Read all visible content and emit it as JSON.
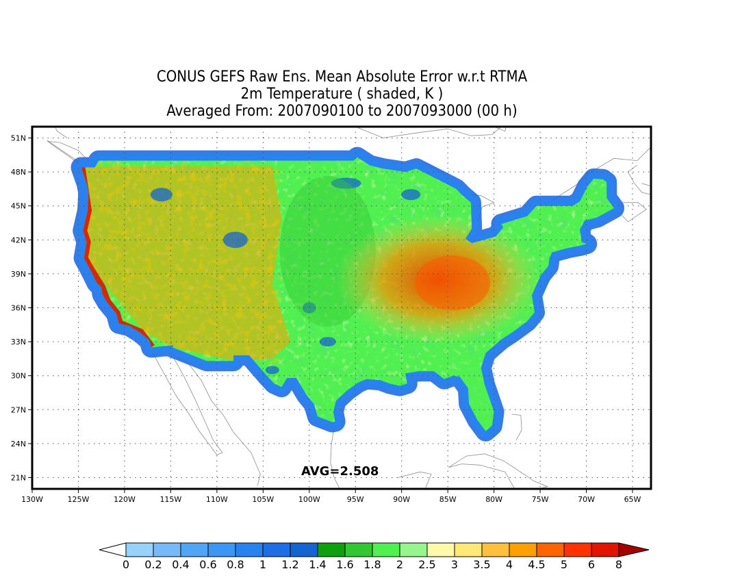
{
  "title": {
    "line1": "CONUS GEFS Raw Ens. Mean Absolute Error w.r.t RTMA",
    "line2": "2m Temperature ( shaded, K )",
    "line3": "Averaged From: 2007090100 to 2007093000 (00 h)"
  },
  "annotation": {
    "avg": "AVG=2.508"
  },
  "map": {
    "lon_range": [
      -130,
      -63
    ],
    "lat_range": [
      20,
      52
    ],
    "lon_ticks": [
      "130W",
      "125W",
      "120W",
      "115W",
      "110W",
      "105W",
      "100W",
      "95W",
      "90W",
      "85W",
      "80W",
      "75W",
      "70W",
      "65W"
    ],
    "lat_ticks": [
      "21N",
      "24N",
      "27N",
      "30N",
      "33N",
      "36N",
      "39N",
      "42N",
      "45N",
      "48N",
      "51N"
    ],
    "grid": "dotted",
    "colors": {
      "coast": "#8c8c8c",
      "ocean_low": "#3c8ce6",
      "ocean_edge": "#78b4ff",
      "land_base": "#4ae04a",
      "interior_hot": "#ff5a00"
    }
  },
  "colorbar": {
    "labels": [
      "0",
      "0.2",
      "0.4",
      "0.6",
      "0.8",
      "1",
      "1.2",
      "1.4",
      "1.6",
      "1.8",
      "2",
      "2.5",
      "3",
      "3.5",
      "4",
      "4.5",
      "5",
      "6",
      "8"
    ],
    "colors": [
      "#96d2fa",
      "#78b9fa",
      "#50a5f5",
      "#3c96f5",
      "#2882f0",
      "#1e6ee6",
      "#1464d2",
      "#0fa00f",
      "#32c832",
      "#50f050",
      "#96f58c",
      "#fffaaa",
      "#ffe878",
      "#ffc03c",
      "#ffa000",
      "#ff6400",
      "#ff3200",
      "#e11400",
      "#c00000"
    ],
    "under_color": "#ffffff",
    "over_color": "#a50000"
  }
}
